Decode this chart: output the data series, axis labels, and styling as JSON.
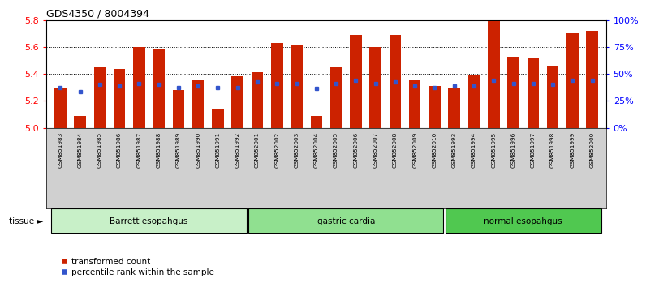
{
  "title": "GDS4350 / 8004394",
  "samples": [
    "GSM851983",
    "GSM851984",
    "GSM851985",
    "GSM851986",
    "GSM851987",
    "GSM851988",
    "GSM851989",
    "GSM851990",
    "GSM851991",
    "GSM851992",
    "GSM852001",
    "GSM852002",
    "GSM852003",
    "GSM852004",
    "GSM852005",
    "GSM852006",
    "GSM852007",
    "GSM852008",
    "GSM852009",
    "GSM852010",
    "GSM851993",
    "GSM851994",
    "GSM851995",
    "GSM851996",
    "GSM851997",
    "GSM851998",
    "GSM851999",
    "GSM852000"
  ],
  "red_values": [
    5.29,
    5.09,
    5.45,
    5.44,
    5.6,
    5.59,
    5.28,
    5.35,
    5.14,
    5.38,
    5.41,
    5.63,
    5.62,
    5.09,
    5.45,
    5.69,
    5.6,
    5.69,
    5.35,
    5.31,
    5.29,
    5.39,
    5.79,
    5.53,
    5.52,
    5.46,
    5.7,
    5.72
  ],
  "blue_values": [
    5.3,
    5.27,
    5.32,
    5.31,
    5.33,
    5.32,
    5.3,
    5.31,
    5.3,
    5.3,
    5.34,
    5.33,
    5.33,
    5.29,
    5.33,
    5.35,
    5.33,
    5.34,
    5.31,
    5.3,
    5.31,
    5.31,
    5.35,
    5.33,
    5.33,
    5.32,
    5.35,
    5.35
  ],
  "ymin": 5.0,
  "ymax": 5.8,
  "yticks": [
    5.0,
    5.2,
    5.4,
    5.6,
    5.8
  ],
  "pct_ticks": [
    0,
    25,
    50,
    75,
    100
  ],
  "groups": [
    {
      "label": "Barrett esopahgus",
      "start": 0,
      "end": 9,
      "color": "#c8f0c8"
    },
    {
      "label": "gastric cardia",
      "start": 10,
      "end": 19,
      "color": "#90e090"
    },
    {
      "label": "normal esopahgus",
      "start": 20,
      "end": 27,
      "color": "#50c850"
    }
  ],
  "bar_color": "#cc2200",
  "blue_color": "#3355cc",
  "bar_width": 0.6,
  "tick_bg_color": "#d0d0d0",
  "tissue_label": "tissue",
  "legend_items": [
    "transformed count",
    "percentile rank within the sample"
  ]
}
